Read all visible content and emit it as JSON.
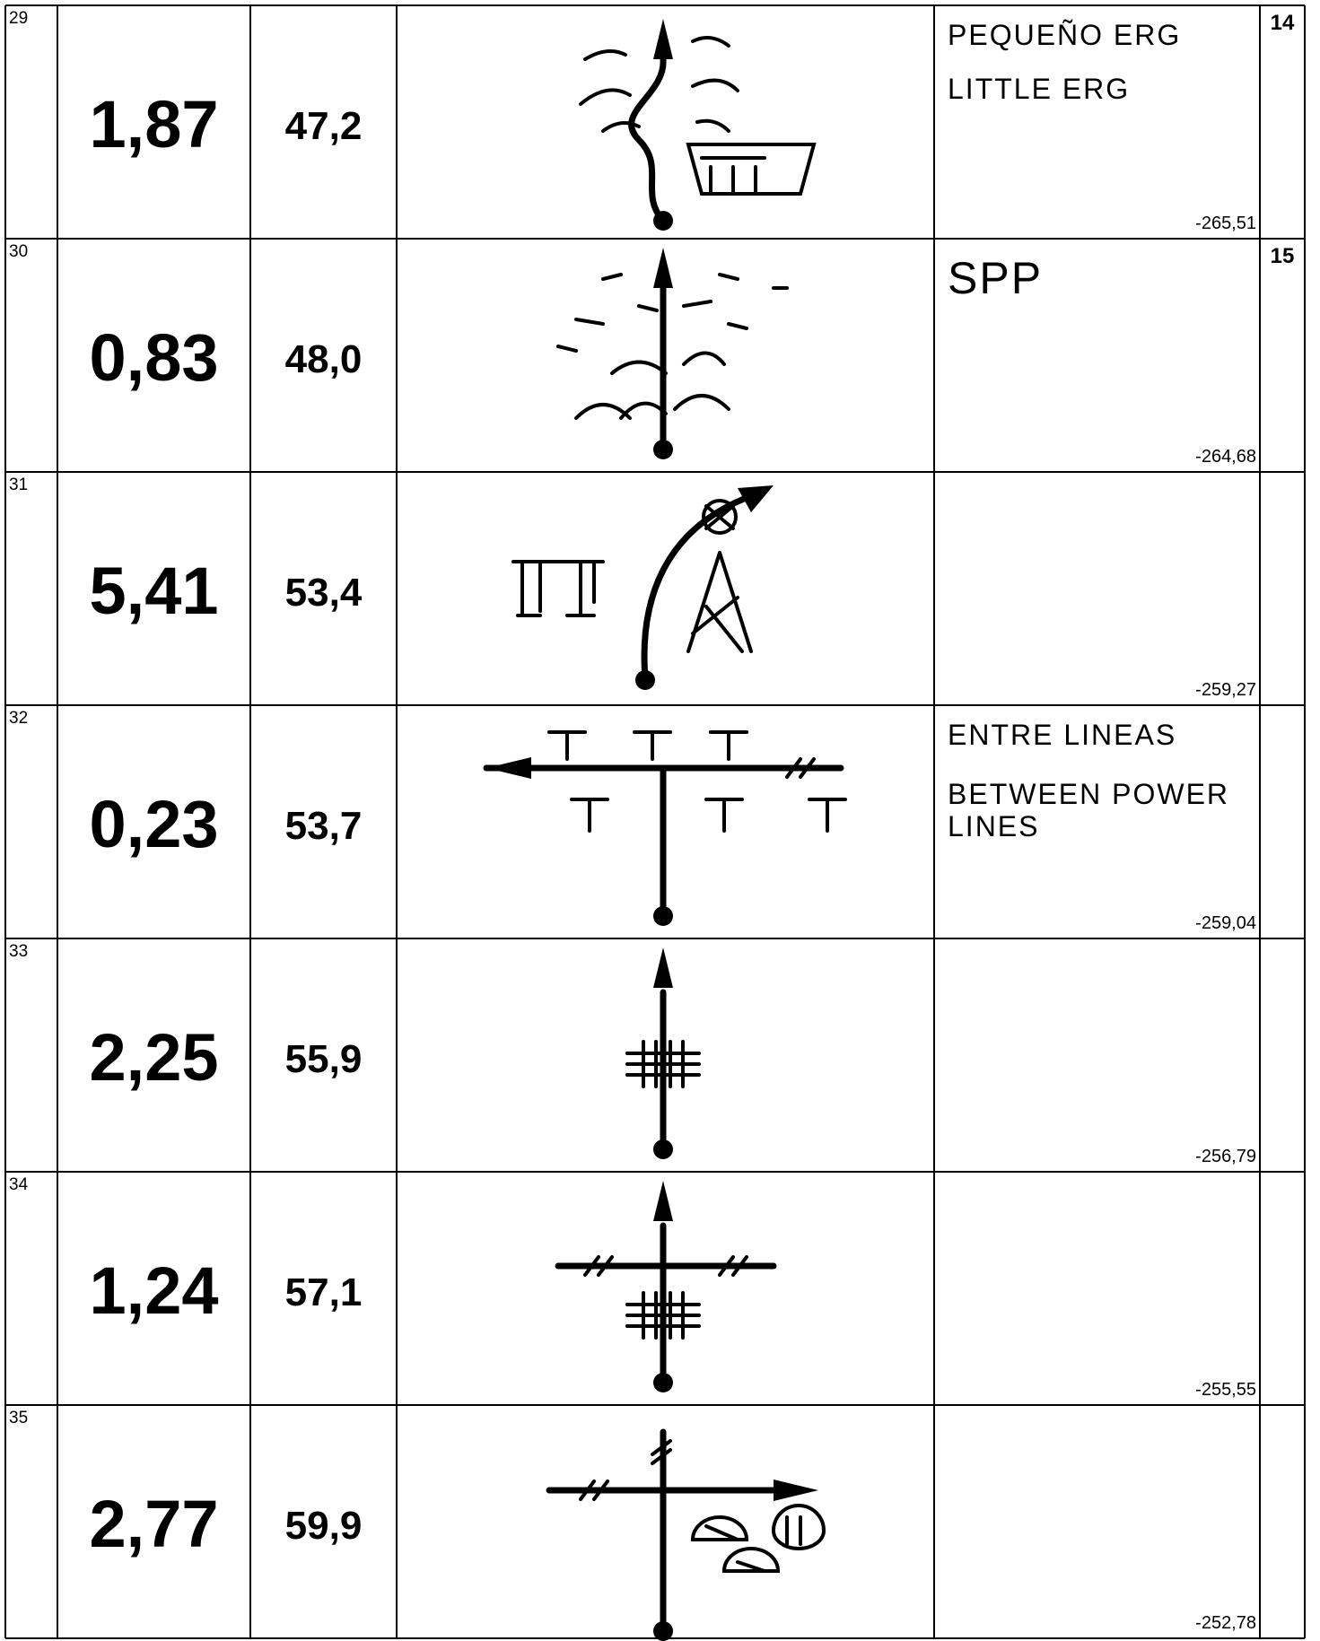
{
  "rows": [
    {
      "index": "29",
      "partial": "1,87",
      "total": "47,2",
      "notes": [
        "PEQUEÑO ERG",
        "LITTLE ERG"
      ],
      "heading": "-265,51",
      "box": "14"
    },
    {
      "index": "30",
      "partial": "0,83",
      "total": "48,0",
      "notes": [
        "SPP"
      ],
      "heading": "-264,68",
      "box": "15"
    },
    {
      "index": "31",
      "partial": "5,41",
      "total": "53,4",
      "heading": "-259,27"
    },
    {
      "index": "32",
      "partial": "0,23",
      "total": "53,7",
      "notes": [
        "ENTRE LINEAS",
        "BETWEEN POWER",
        "LINES"
      ],
      "heading": "-259,04"
    },
    {
      "index": "33",
      "partial": "2,25",
      "total": "55,9",
      "heading": "-256,79"
    },
    {
      "index": "34",
      "partial": "1,24",
      "total": "57,1",
      "heading": "-255,55"
    },
    {
      "index": "35",
      "partial": "2,77",
      "total": "59,9",
      "heading": "-252,78"
    }
  ]
}
